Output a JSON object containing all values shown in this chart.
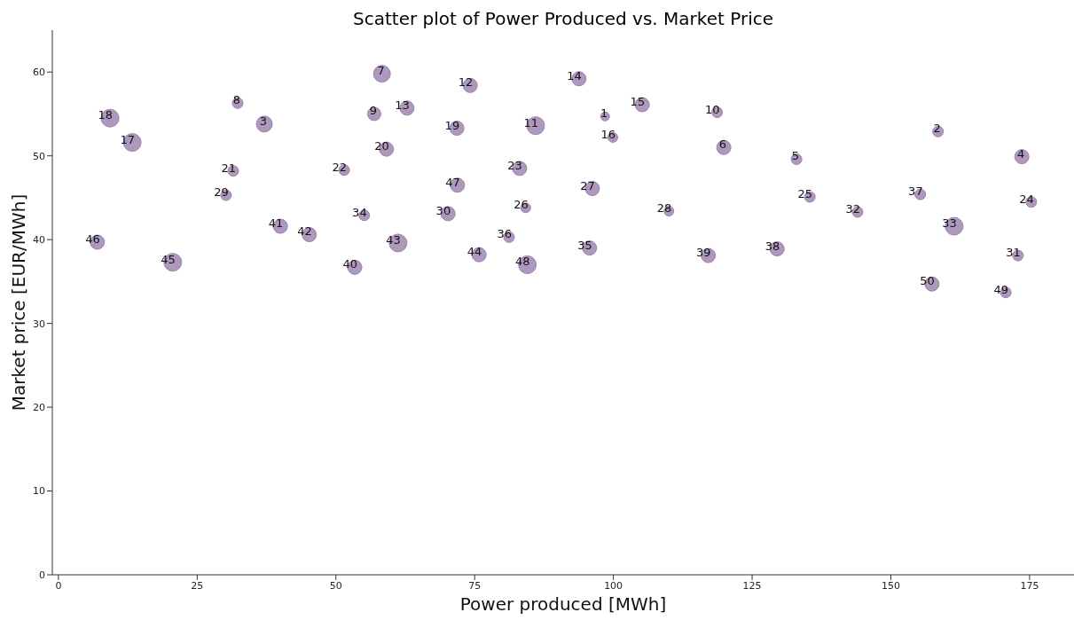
{
  "chart_data": {
    "type": "bubble",
    "title": "Scatter plot of Power Produced vs. Market Price",
    "xlabel": "Power produced [MWh]",
    "ylabel": "Market price [EUR/MWh]",
    "xlim": [
      -1.1,
      183
    ],
    "xticks": [
      0,
      25,
      50,
      75,
      100,
      125,
      150,
      175
    ],
    "ylim": [
      0,
      65
    ],
    "yticks": [
      0,
      10,
      20,
      30,
      40,
      50,
      60
    ],
    "grid": false,
    "legend": false,
    "x": [
      98.5,
      158.5,
      37.1,
      173.6,
      133.0,
      119.9,
      58.3,
      32.3,
      56.9,
      118.7,
      86.0,
      74.2,
      62.8,
      93.8,
      105.2,
      99.9,
      13.3,
      9.3,
      71.8,
      59.1,
      31.5,
      51.5,
      83.1,
      175.3,
      135.4,
      84.2,
      96.2,
      110.0,
      30.2,
      70.2,
      172.9,
      144.0,
      161.4,
      55.1,
      95.7,
      81.2,
      155.3,
      129.5,
      117.1,
      53.4,
      40.0,
      45.2,
      61.2,
      75.8,
      20.6,
      7.0,
      71.9,
      84.5,
      170.7,
      157.4
    ],
    "series": [
      {
        "color": "#a58eb6",
        "values": [
          54.7,
          52.9,
          53.8,
          49.9,
          49.6,
          51.0,
          59.8,
          56.3,
          55.0,
          55.2,
          53.6,
          58.4,
          55.7,
          59.2,
          56.1,
          52.2,
          51.6,
          54.5,
          53.3,
          50.8,
          48.2,
          48.3,
          48.5,
          44.5,
          45.1,
          43.8,
          46.1,
          43.4,
          45.3,
          43.1,
          38.1,
          43.3,
          41.6,
          42.9,
          39.0,
          40.3,
          45.4,
          38.9,
          38.1,
          36.7,
          41.6,
          40.6,
          39.6,
          38.2,
          37.3,
          39.7,
          46.5,
          37.0,
          33.7,
          34.7
        ],
        "sizes": [
          0.25,
          0.36,
          0.81,
          0.64,
          0.36,
          0.64,
          0.9,
          0.36,
          0.56,
          0.36,
          1,
          0.64,
          0.64,
          0.64,
          0.64,
          0.3,
          1,
          1,
          0.64,
          0.64,
          0.36,
          0.36,
          0.64,
          0.36,
          0.36,
          0.3,
          0.64,
          0.3,
          0.36,
          0.64,
          0.36,
          0.36,
          1,
          0.36,
          0.64,
          0.36,
          0.36,
          0.64,
          0.64,
          0.64,
          0.64,
          0.64,
          1,
          0.64,
          1,
          0.64,
          0.64,
          1,
          0.36,
          0.64
        ]
      }
    ],
    "annotations": [
      {
        "text": "1",
        "x": 98.5,
        "y": 54.7
      },
      {
        "text": "2",
        "x": 158.5,
        "y": 52.9
      },
      {
        "text": "3",
        "x": 37.1,
        "y": 53.8
      },
      {
        "text": "4",
        "x": 173.6,
        "y": 49.9
      },
      {
        "text": "5",
        "x": 133.0,
        "y": 49.6
      },
      {
        "text": "6",
        "x": 119.9,
        "y": 51.0
      },
      {
        "text": "7",
        "x": 58.3,
        "y": 59.8
      },
      {
        "text": "8",
        "x": 32.3,
        "y": 56.3
      },
      {
        "text": "9",
        "x": 56.9,
        "y": 55.0
      },
      {
        "text": "10",
        "x": 118.7,
        "y": 55.2
      },
      {
        "text": "11",
        "x": 86.0,
        "y": 53.6
      },
      {
        "text": "12",
        "x": 74.2,
        "y": 58.4
      },
      {
        "text": "13",
        "x": 62.8,
        "y": 55.7
      },
      {
        "text": "14",
        "x": 93.8,
        "y": 59.2
      },
      {
        "text": "15",
        "x": 105.2,
        "y": 56.1
      },
      {
        "text": "16",
        "x": 99.9,
        "y": 52.2
      },
      {
        "text": "17",
        "x": 13.3,
        "y": 51.6
      },
      {
        "text": "18",
        "x": 9.3,
        "y": 54.5
      },
      {
        "text": "19",
        "x": 71.8,
        "y": 53.3
      },
      {
        "text": "20",
        "x": 59.1,
        "y": 50.8
      },
      {
        "text": "21",
        "x": 31.5,
        "y": 48.2
      },
      {
        "text": "22",
        "x": 51.5,
        "y": 48.3
      },
      {
        "text": "23",
        "x": 83.1,
        "y": 48.5
      },
      {
        "text": "24",
        "x": 175.3,
        "y": 44.5
      },
      {
        "text": "25",
        "x": 135.4,
        "y": 45.1
      },
      {
        "text": "26",
        "x": 84.2,
        "y": 43.8
      },
      {
        "text": "27",
        "x": 96.2,
        "y": 46.1
      },
      {
        "text": "28",
        "x": 110.0,
        "y": 43.4
      },
      {
        "text": "29",
        "x": 30.2,
        "y": 45.3
      },
      {
        "text": "30",
        "x": 70.2,
        "y": 43.1
      },
      {
        "text": "31",
        "x": 172.9,
        "y": 38.1
      },
      {
        "text": "32",
        "x": 144.0,
        "y": 43.3
      },
      {
        "text": "33",
        "x": 161.4,
        "y": 41.6
      },
      {
        "text": "34",
        "x": 55.1,
        "y": 42.9
      },
      {
        "text": "35",
        "x": 95.7,
        "y": 39.0
      },
      {
        "text": "36",
        "x": 81.2,
        "y": 40.3
      },
      {
        "text": "37",
        "x": 155.3,
        "y": 45.4
      },
      {
        "text": "38",
        "x": 129.5,
        "y": 38.9
      },
      {
        "text": "39",
        "x": 117.1,
        "y": 38.1
      },
      {
        "text": "40",
        "x": 53.4,
        "y": 36.7
      },
      {
        "text": "41",
        "x": 40.0,
        "y": 41.6
      },
      {
        "text": "42",
        "x": 45.2,
        "y": 40.6
      },
      {
        "text": "43",
        "x": 61.2,
        "y": 39.6
      },
      {
        "text": "44",
        "x": 75.8,
        "y": 38.2
      },
      {
        "text": "45",
        "x": 20.6,
        "y": 37.3
      },
      {
        "text": "46",
        "x": 7.0,
        "y": 39.7
      },
      {
        "text": "47",
        "x": 71.9,
        "y": 46.5
      },
      {
        "text": "48",
        "x": 84.5,
        "y": 37.0
      },
      {
        "text": "49",
        "x": 170.7,
        "y": 33.7
      },
      {
        "text": "50",
        "x": 157.4,
        "y": 34.7
      }
    ]
  }
}
